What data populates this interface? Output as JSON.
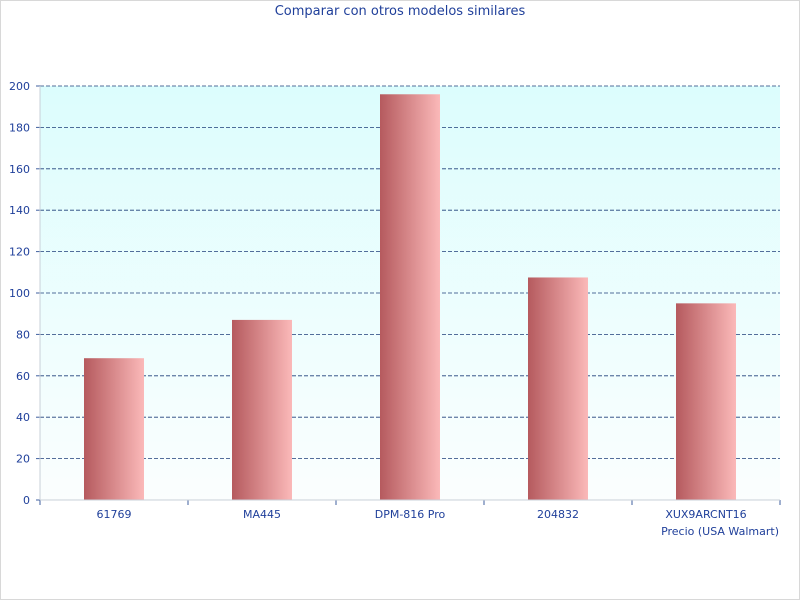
{
  "chart_data": {
    "type": "bar",
    "title": "Comparar con otros modelos similares",
    "xlabel": "Precio (USA Walmart)",
    "ylabel": "",
    "categories": [
      "61769",
      "MA445",
      "DPM-816 Pro",
      "204832",
      "XUX9ARCNT16"
    ],
    "values": [
      68.5,
      87,
      196,
      107.5,
      95
    ],
    "ylim": [
      0,
      200
    ],
    "yticks": [
      0,
      20,
      40,
      60,
      80,
      100,
      120,
      140,
      160,
      180,
      200
    ],
    "grid": true,
    "legend": "none"
  },
  "colors": {
    "bar_dark": "#b55a5e",
    "bar_light": "#fbb9b9",
    "plot_bg_top": "#dcfdfd",
    "plot_bg_bottom": "#fbfefe",
    "grid": "#1f3f7a",
    "axis": "#3f5f9f",
    "text": "#1f3f9a"
  }
}
